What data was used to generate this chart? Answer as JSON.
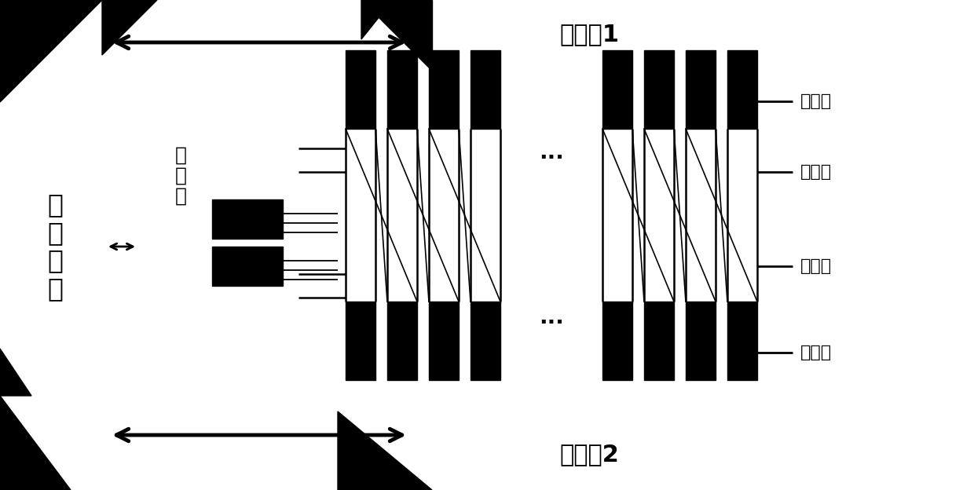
{
  "bg_color": "#ffffff",
  "text_color": "#000000",
  "labels": {
    "jiankong": "监\n控\n软\n件",
    "liuliang": "流\n量\n仳",
    "jiaohuan1": "交据机1",
    "jiaohuan2": "交据机2",
    "mokuaijia1": "模块架",
    "tiaoxianjia1": "跳线架",
    "tiaoxianjia2": "跳线架",
    "mokuaijia2": "模块架"
  },
  "figsize": [
    12.4,
    6.24
  ],
  "dpi": 100
}
